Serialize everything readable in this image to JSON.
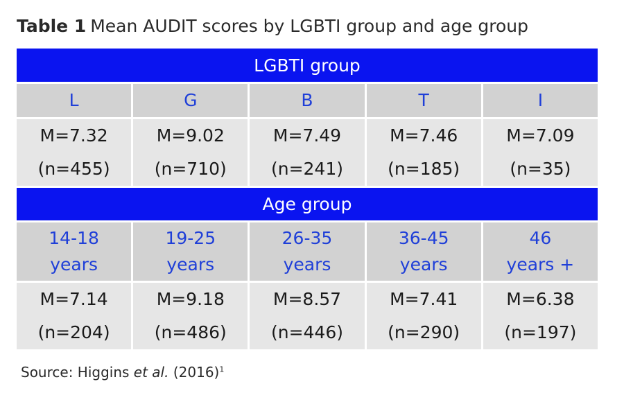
{
  "title": {
    "label": "Table 1",
    "text": "Mean AUDIT scores by LGBTI group and age group"
  },
  "lgbti_section": {
    "header": "LGBTI group",
    "columns": [
      {
        "category": "L",
        "mean": "M=7.32",
        "n": "(n=455)"
      },
      {
        "category": "G",
        "mean": "M=9.02",
        "n": "(n=710)"
      },
      {
        "category": "B",
        "mean": "M=7.49",
        "n": "(n=241)"
      },
      {
        "category": "T",
        "mean": "M=7.46",
        "n": "(n=185)"
      },
      {
        "category": "I",
        "mean": "M=7.09",
        "n": "(n=35)"
      }
    ]
  },
  "age_section": {
    "header": "Age group",
    "columns": [
      {
        "category": "14-18\nyears",
        "mean": "M=7.14",
        "n": "(n=204)"
      },
      {
        "category": "19-25\nyears",
        "mean": "M=9.18",
        "n": "(n=486)"
      },
      {
        "category": "26-35\nyears",
        "mean": "M=8.57",
        "n": "(n=446)"
      },
      {
        "category": "36-45\nyears",
        "mean": "M=7.41",
        "n": "(n=290)"
      },
      {
        "category": "46\nyears +",
        "mean": "M=6.38",
        "n": "(n=197)"
      }
    ]
  },
  "source": {
    "prefix": "Source: Higgins ",
    "italic": "et al.",
    "suffix": " (2016)",
    "superscript": "1"
  },
  "colors": {
    "header_bg": "#0a14f0",
    "category_bg": "#d2d2d2",
    "category_text": "#1f3fd8",
    "value_bg": "#e6e6e6"
  }
}
